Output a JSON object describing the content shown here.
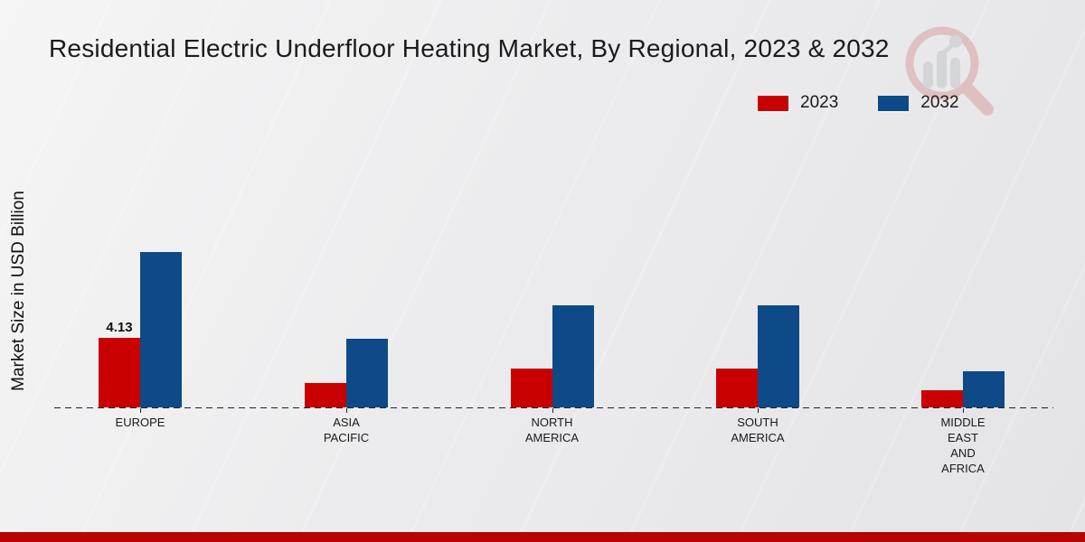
{
  "title": "Residential Electric Underfloor Heating Market, By Regional, 2023 & 2032",
  "y_axis_label": "Market Size in USD Billion",
  "legend": [
    {
      "label": "2023",
      "color": "#c80100"
    },
    {
      "label": "2032",
      "color": "#0d4a87"
    }
  ],
  "colors": {
    "bar_2023": "#c80100",
    "bar_2032": "#0d4a87",
    "footer_band": "#b70504",
    "axis": "#222222",
    "background": "#ececee",
    "watermark_red": "#d89a9a",
    "watermark_gray": "#c2c4c8"
  },
  "footer": {
    "band_color": "#b70504"
  },
  "watermark_icon": "magnifier-bar-chart-logo",
  "chart_data": {
    "type": "bar",
    "title": "Residential Electric Underfloor Heating Market, By Regional, 2023 & 2032",
    "xlabel": "",
    "ylabel": "Market Size in USD Billion",
    "categories": [
      "Europe",
      "Asia Pacific",
      "North America",
      "South America",
      "Middle East and Africa"
    ],
    "category_display": [
      "EUROPE",
      "ASIA\nPACIFIC",
      "NORTH\nAMERICA",
      "SOUTH\nAMERICA",
      "MIDDLE\nEAST\nAND\nAFRICA"
    ],
    "series": [
      {
        "name": "2023",
        "color": "#c80100",
        "values": [
          4.13,
          1.45,
          2.3,
          2.3,
          1.0
        ]
      },
      {
        "name": "2032",
        "color": "#0d4a87",
        "values": [
          9.2,
          4.1,
          6.05,
          6.05,
          2.15
        ]
      }
    ],
    "bar_labels": [
      {
        "series_index": 0,
        "category_index": 0,
        "text": "4.13"
      }
    ],
    "ylim": [
      0,
      10
    ],
    "grid": false,
    "axis_line_style": "dashed",
    "legend_position": "top-right",
    "y_axis_ticks_visible": false
  }
}
